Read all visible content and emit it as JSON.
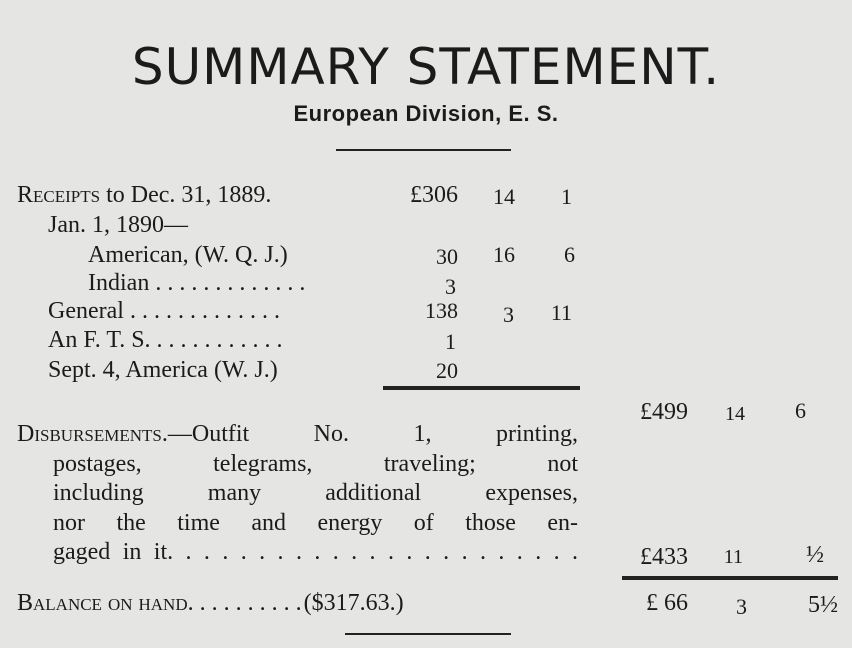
{
  "title": "SUMMARY STATEMENT.",
  "subtitle": "European Division, E. S.",
  "receipts": {
    "rows": [
      {
        "label_sc": "Receipts",
        "label": " to Dec. 31, 1889.",
        "pounds": "£306",
        "shillings": "14",
        "pence": "1"
      },
      {
        "label": "Jan. 1, 1890—",
        "pounds": "",
        "shillings": "",
        "pence": ""
      },
      {
        "label": "American, (W. Q. J.)",
        "pounds": "30",
        "shillings": "16",
        "pence": "6"
      },
      {
        "label": "Indian . . . . . . . . . . . . .",
        "pounds": "3",
        "shillings": "",
        "pence": ""
      },
      {
        "label": "General . . . .  . .  . . . . . . .",
        "pounds": "138",
        "shillings": "3",
        "pence": "11"
      },
      {
        "label": "An F. T. S. . . . . . . . . . . .",
        "pounds": "1",
        "shillings": "",
        "pence": ""
      },
      {
        "label": "Sept. 4, America (W. J.)",
        "pounds": "20",
        "shillings": "",
        "pence": ""
      }
    ],
    "total": {
      "pounds": "£499",
      "shillings": "14",
      "pence": "6"
    }
  },
  "disbursements": {
    "label_sc": "Disbursements.",
    "lines": [
      "—Outfit No. 1, printing,",
      "postages, telegrams, traveling; not",
      "including many additional expenses,",
      "nor the time and energy of those en-",
      "gaged in it. . . . . . . . . . . . . . . . . . . . . . ."
    ],
    "total": {
      "pounds": "£433",
      "shillings": "11",
      "pence": "½"
    }
  },
  "balance": {
    "label_sc": "Balance on hand",
    "dots": ". . . . .  . .  . . .",
    "dollars": "($317.63.)",
    "pounds": "£ 66",
    "shillings": "3",
    "pence": "5½"
  }
}
